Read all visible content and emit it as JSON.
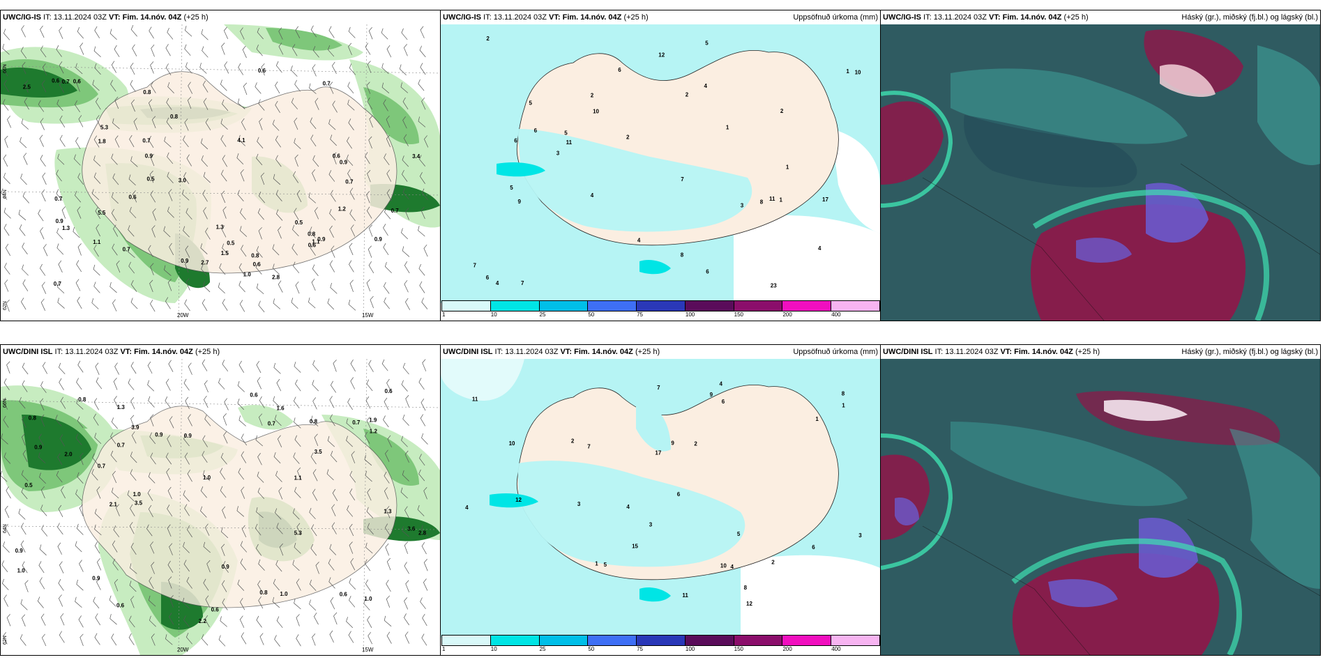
{
  "panels": [
    {
      "row": 0,
      "col": 0,
      "type": "wind",
      "model": "UWC/IG-IS",
      "it": "13.11.2024 03Z",
      "vt": "Fim. 14.nóv. 04Z",
      "lead": "(+25 h)",
      "right_label": "",
      "lon_labels": [
        "20W",
        "15W"
      ],
      "lat_labels": [
        "66N",
        "64N",
        "62N"
      ],
      "labels": [
        "0.9",
        "0.5",
        "4.1",
        "2.5",
        "3.4",
        "1.3",
        "1.5",
        "0.7",
        "0.6",
        "5.3",
        "5.5",
        "0.9",
        "2.7",
        "2.8",
        "0.7",
        "0.6",
        "0.8",
        "1.1",
        "0.7",
        "0.9",
        "0.6",
        "0.7",
        "1.8",
        "0.9",
        "0.8",
        "0.7",
        "0.6",
        "1.0",
        "0.8",
        "0.7",
        "0.6",
        "0.5",
        "1.2",
        "1.3",
        "0.6",
        "0.8",
        "0.7",
        "0.9",
        "3.0",
        "0.6",
        "0.7",
        "1.1",
        "0.5",
        "0.9"
      ]
    },
    {
      "row": 0,
      "col": 1,
      "type": "precip",
      "model": "UWC/IG-IS",
      "it": "13.11.2024 03Z",
      "vt": "Fim. 14.nóv. 04Z",
      "lead": "(+25 h)",
      "right_label": "Uppsöfnuð úrkoma (mm)",
      "labels": [
        "2",
        "3",
        "4",
        "5",
        "6",
        "4",
        "2",
        "4",
        "8",
        "17",
        "6",
        "10",
        "23",
        "11",
        "6",
        "8",
        "4",
        "9",
        "7",
        "12",
        "7",
        "10",
        "5",
        "5",
        "6",
        "3",
        "1",
        "2",
        "11",
        "7",
        "1",
        "5",
        "2",
        "6",
        "1",
        "4",
        "2",
        "1"
      ]
    },
    {
      "row": 0,
      "col": 2,
      "type": "cloud",
      "model": "UWC/IG-IS",
      "it": "13.11.2024 03Z",
      "vt": "Fim. 14.nóv. 04Z",
      "lead": "(+25 h)",
      "right_label": "Háský (gr.), miðský (fj.bl.) og lágský (bl.)"
    },
    {
      "row": 1,
      "col": 0,
      "type": "wind",
      "model": "UWC/DINI ISL",
      "it": "13.11.2024 03Z",
      "vt": "Fim. 14.nóv. 04Z",
      "lead": "(+25 h)",
      "right_label": "",
      "lon_labels": [
        "20W",
        "15W"
      ],
      "lat_labels": [
        "66N",
        "64N",
        "62N"
      ],
      "labels": [
        "0.9",
        "0.7",
        "1.1",
        "0.6",
        "0.7",
        "2.2",
        "5.3",
        "3.5",
        "1.9",
        "2.8",
        "3.6",
        "3.9",
        "3.5",
        "0.9",
        "0.5",
        "0.6",
        "1.0",
        "0.9",
        "1.0",
        "0.8",
        "0.6",
        "1.3",
        "1.0",
        "0.9",
        "0.8",
        "0.7",
        "1.2",
        "1.6",
        "0.8",
        "2.1",
        "0.9",
        "1.0",
        "0.6",
        "2.0",
        "0.8",
        "1.3",
        "0.9",
        "0.7",
        "0.6",
        "1.0"
      ]
    },
    {
      "row": 1,
      "col": 1,
      "type": "precip",
      "model": "UWC/DINI ISL",
      "it": "13.11.2024 03Z",
      "vt": "Fim. 14.nóv. 04Z",
      "lead": "(+25 h)",
      "right_label": "Uppsöfnuð úrkoma (mm)",
      "labels": [
        "2",
        "4",
        "5",
        "6",
        "4",
        "8",
        "10",
        "17",
        "9",
        "11",
        "6",
        "15",
        "12",
        "12",
        "3",
        "7",
        "9",
        "6",
        "8",
        "10",
        "4",
        "5",
        "11",
        "1",
        "2",
        "4",
        "3",
        "3",
        "1",
        "7",
        "2",
        "1"
      ]
    },
    {
      "row": 1,
      "col": 2,
      "type": "cloud",
      "model": "UWC/DINI ISL",
      "it": "13.11.2024 03Z",
      "vt": "Fim. 14.nóv. 04Z",
      "lead": "(+25 h)",
      "right_label": "Háský (gr.), miðský (fj.bl.) og lágský (bl.)"
    }
  ],
  "precip_scale": {
    "ticks": [
      "1",
      "10",
      "25",
      "50",
      "75",
      "100",
      "150",
      "200",
      "400"
    ],
    "colors": [
      "#d9f9f9",
      "#00e5e5",
      "#00bfe8",
      "#3e6ff5",
      "#2a38b8",
      "#5a0c5a",
      "#8b0e6b",
      "#f10fbf",
      "#f7b4f1"
    ]
  },
  "colors": {
    "land": "#fbeee1",
    "sea": "#ffffff",
    "precip_light": "#b6f4f4",
    "wind_green_light": "#c7ecc0",
    "wind_green_mid": "#7ec77a",
    "wind_green_dark": "#1e7a2e",
    "cloud_base": "#2f5b61",
    "cloud_high": "#8b1a4a",
    "cloud_mid": "#6a5acd",
    "cloud_low": "#3fa7a0"
  }
}
